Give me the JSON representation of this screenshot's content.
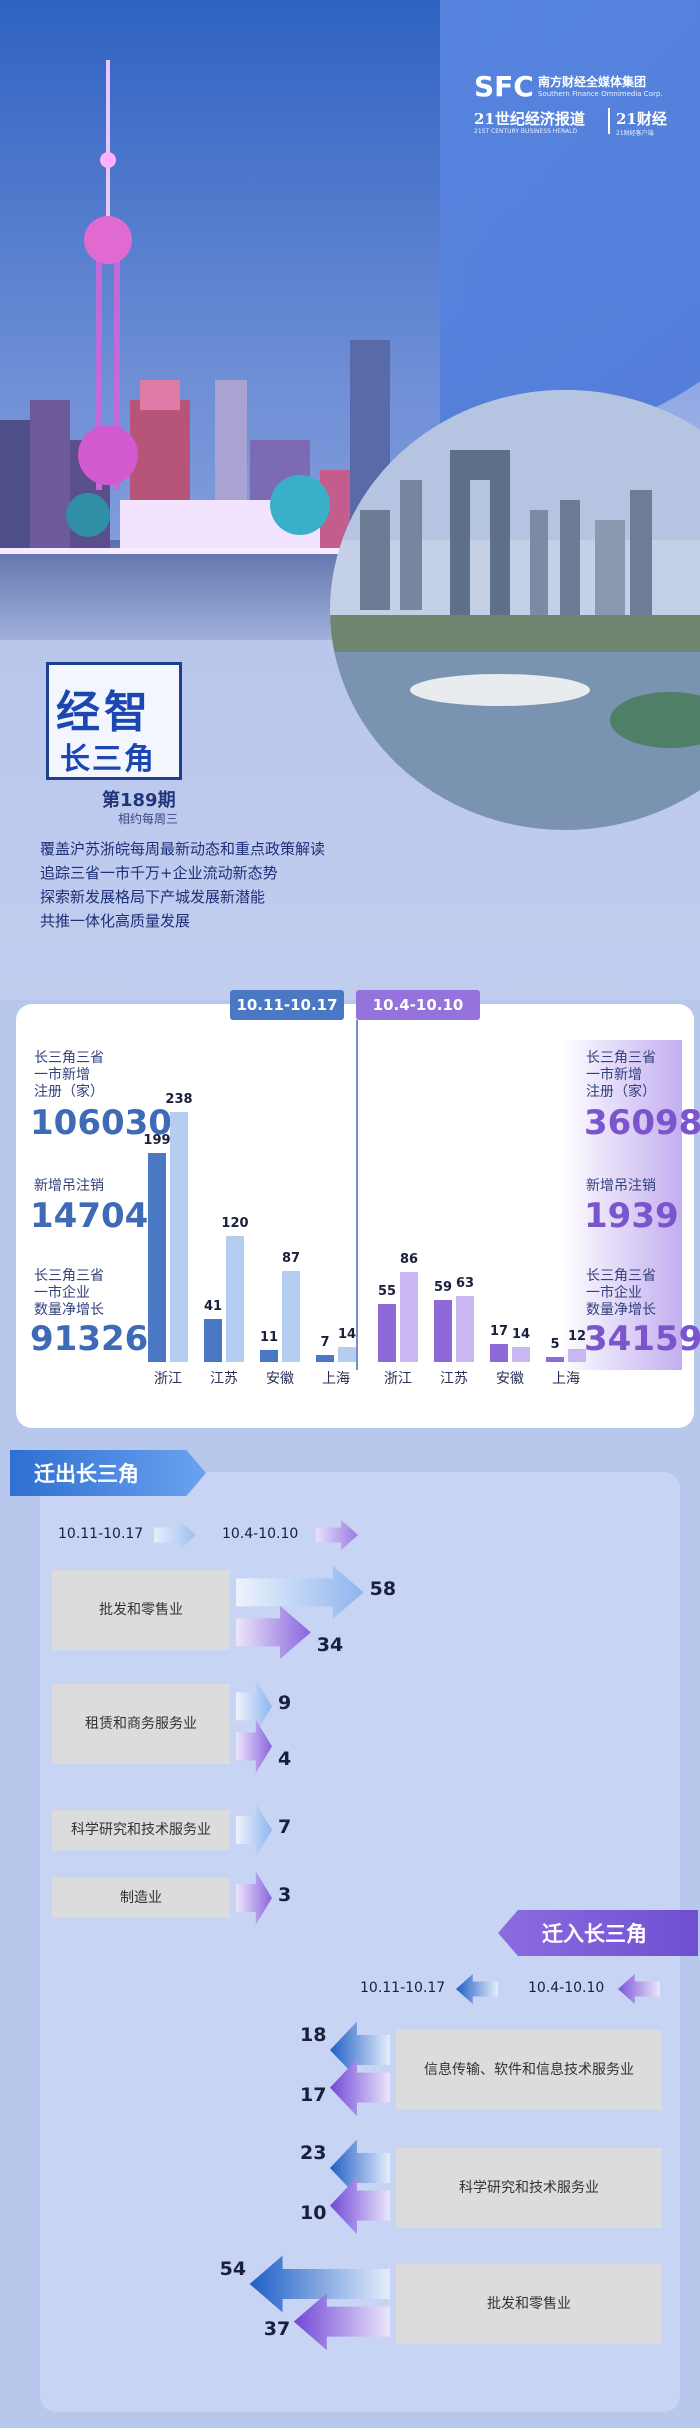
{
  "header": {
    "logo_sfc": "SFC",
    "logo_group": "南方财经全媒体集团",
    "logo_group_en": "Southern Finance Omnimedia Corp.",
    "logo_herald": "21世纪经济报道",
    "logo_herald_en": "21ST CENTURY BUSINESS HERALD",
    "logo_21": "21财经",
    "logo_21_en": "21财经客户端"
  },
  "title": {
    "main": "经智",
    "sub": "长三角",
    "issue": "第189期",
    "frequency": "相约每周三"
  },
  "description": [
    "覆盖沪苏浙皖每周最新动态和重点政策解读",
    "追踪三省一市千万+企业流动新态势",
    "探索新发展格局下产城发展新潜能",
    "共推一体化高质量发展"
  ],
  "colors": {
    "current_period": "#4a78c4",
    "previous_period": "#8a6ad8",
    "current_light": "#b5cdf0",
    "previous_light": "#c2b0ee"
  },
  "summary": {
    "current": {
      "period": "10.11-10.17",
      "new_reg_label": "长三角三省一市新增注册（家）",
      "new_reg_label_lines": [
        "长三角三省",
        "一市新增",
        "注册（家）"
      ],
      "new_reg": "106030",
      "cancel_label": "新增吊注销",
      "cancel": "14704",
      "net_label_lines": [
        "长三角三省",
        "一市企业",
        "数量净增长"
      ],
      "net": "91326"
    },
    "previous": {
      "period": "10.4-10.10",
      "new_reg_label_lines": [
        "长三角三省",
        "一市新增",
        "注册（家）"
      ],
      "new_reg": "36098",
      "cancel_label": "新增吊注销",
      "cancel": "1939",
      "net_label_lines": [
        "长三角三省",
        "一市企业",
        "数量净增长"
      ],
      "net": "34159"
    }
  },
  "chart_data": [
    {
      "type": "bar",
      "categories": [
        "浙江",
        "江苏",
        "安徽",
        "上海"
      ],
      "series": [
        {
          "period": "10.11-10.17",
          "values_dark": [
            199,
            41,
            11,
            7
          ],
          "values_light": [
            238,
            120,
            87,
            14
          ]
        },
        {
          "period": "10.4-10.10",
          "values_dark": [
            55,
            59,
            17,
            5
          ],
          "values_light": [
            86,
            63,
            14,
            12
          ]
        }
      ]
    },
    {
      "type": "bar",
      "title": "迁出长三角",
      "categories": [
        "批发和零售业",
        "租赁和商务服务业",
        "科学研究和技术服务业",
        "制造业"
      ],
      "series": [
        {
          "name": "10.11-10.17",
          "values": [
            58,
            9,
            7,
            null
          ]
        },
        {
          "name": "10.4-10.10",
          "values": [
            34,
            4,
            null,
            3
          ]
        }
      ]
    },
    {
      "type": "bar",
      "title": "迁入长三角",
      "categories": [
        "信息传输、软件和信息技术服务业",
        "科学研究和技术服务业",
        "批发和零售业"
      ],
      "series": [
        {
          "name": "10.11-10.17",
          "values": [
            18,
            23,
            54
          ]
        },
        {
          "name": "10.4-10.10",
          "values": [
            17,
            10,
            37
          ]
        }
      ]
    }
  ],
  "out_section": {
    "tag": "迁出长三角",
    "legend_current": "10.11-10.17",
    "legend_previous": "10.4-10.10"
  },
  "in_section": {
    "tag": "迁入长三角",
    "legend_current": "10.11-10.17",
    "legend_previous": "10.4-10.10"
  }
}
